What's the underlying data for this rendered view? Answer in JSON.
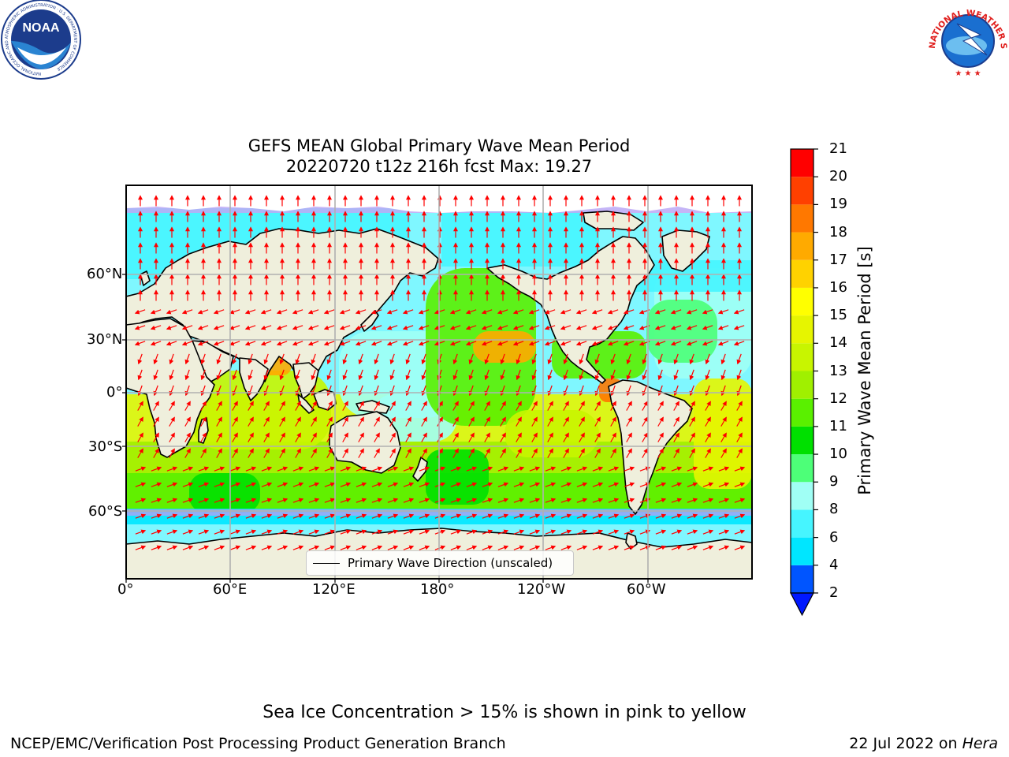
{
  "title": {
    "line1": "GEFS MEAN Global Primary Wave Mean Period",
    "line2": "20220720 t12z 216h fcst   Max: 19.27"
  },
  "axes": {
    "lat_labels": [
      "60°N",
      "30°N",
      "0°",
      "30°S",
      "60°S"
    ],
    "lon_labels": [
      "0°",
      "60°E",
      "120°E",
      "180°",
      "120°W",
      "60°W"
    ]
  },
  "legend": {
    "label": "Primary Wave Direction (unscaled)"
  },
  "colorbar": {
    "label": "Primary Wave Mean Period [s]",
    "levels": [
      2,
      4,
      6,
      8,
      9,
      10,
      11,
      12,
      13,
      14,
      15,
      16,
      17,
      18,
      19,
      20,
      21
    ],
    "colors": [
      "#0055ff",
      "#00e6ff",
      "#46f5ff",
      "#a0fff5",
      "#4dff78",
      "#00e000",
      "#5af000",
      "#a0f000",
      "#c8f500",
      "#e6f500",
      "#ffff00",
      "#ffd200",
      "#ffaa00",
      "#ff7800",
      "#ff4000",
      "#ff0000"
    ],
    "extend_color": "#0018ff"
  },
  "footer": {
    "ice_note": "Sea Ice Concentration > 15% is shown in pink to yellow",
    "credit": "NCEP/EMC/Verification Post Processing Product Generation Branch",
    "date_prefix": "22 Jul 2022 on ",
    "machine": "Hera"
  },
  "colors": {
    "land": "#efefdc",
    "ocean_default": "#7ff7ff",
    "arrow": "#ff0000",
    "grid": "#b0b0b0"
  },
  "logos": {
    "noaa": {
      "text": "NOAA",
      "ring": "NATIONAL OCEANIC AND ATMOSPHERIC ADMINISTRATION · U.S. DEPARTMENT OF COMMERCE"
    },
    "nws": {
      "ring": "NATIONAL WEATHER SERVICE"
    }
  }
}
